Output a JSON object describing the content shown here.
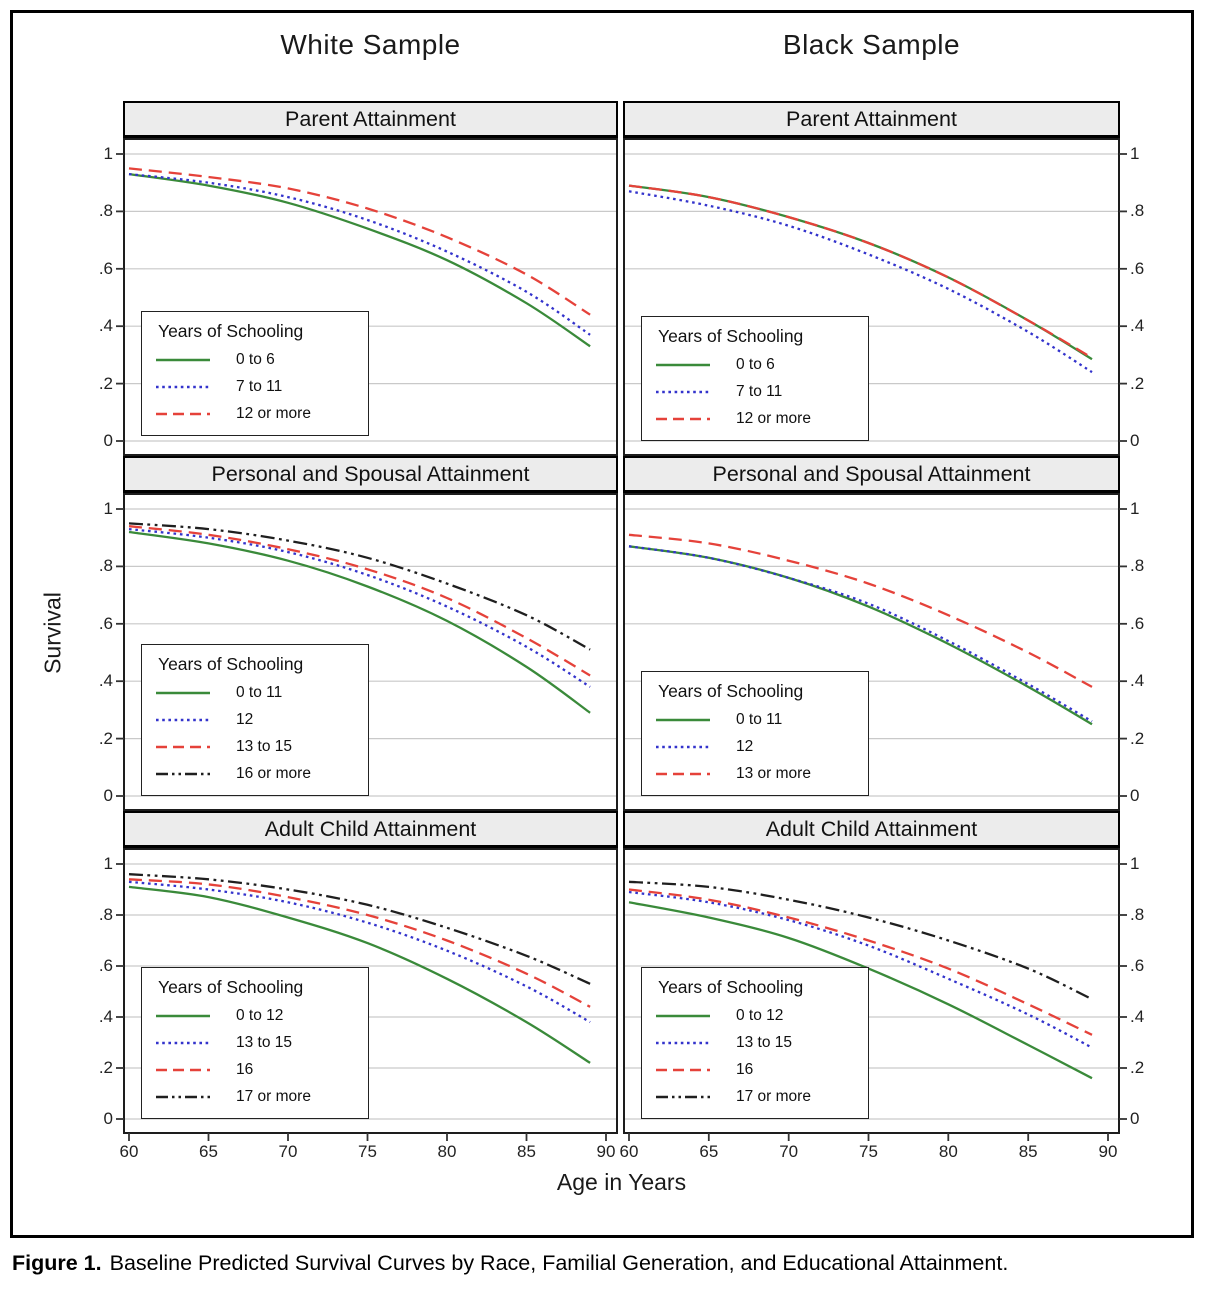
{
  "figure": {
    "column_titles": [
      "White Sample",
      "Black Sample"
    ],
    "x_axis": {
      "label": "Age in Years",
      "ticks": [
        60,
        65,
        70,
        75,
        80,
        85,
        90
      ],
      "range": [
        60,
        90
      ]
    },
    "y_axis": {
      "label": "Survival",
      "ticks": [
        "1",
        ".8",
        ".6",
        ".4",
        ".2",
        "0"
      ],
      "tick_values": [
        1,
        0.8,
        0.6,
        0.4,
        0.2,
        0
      ],
      "range": [
        0,
        1
      ]
    },
    "caption_label": "Figure 1.",
    "caption_text": "Baseline Predicted Survival Curves by Race, Familial Generation, and Educational Attainment."
  },
  "colors": {
    "green": "#3a8a3a",
    "blue": "#3333cc",
    "red": "#e5423a",
    "black": "#1f1f1f",
    "gridline": "#c9c9c9",
    "panel_header_bg": "#ececec"
  },
  "chart_data": [
    {
      "id": "white-parent",
      "type": "line",
      "sample": "White Sample",
      "title": "Parent Attainment",
      "col": 0,
      "row": 0,
      "legend_title": "Years of Schooling",
      "legend_position": "lower left",
      "grid": "horizontal",
      "ylim": [
        0,
        1
      ],
      "xlim": [
        60,
        90
      ],
      "x": [
        60,
        65,
        70,
        75,
        80,
        85,
        89
      ],
      "series": [
        {
          "name": "0 to 6",
          "style": "solid",
          "color": "#3a8a3a",
          "values": [
            0.93,
            0.89,
            0.83,
            0.74,
            0.63,
            0.48,
            0.33
          ]
        },
        {
          "name": "7 to 11",
          "style": "dotted",
          "color": "#3333cc",
          "values": [
            0.93,
            0.9,
            0.85,
            0.77,
            0.66,
            0.52,
            0.37
          ]
        },
        {
          "name": "12 or more",
          "style": "dashed",
          "color": "#e5423a",
          "values": [
            0.95,
            0.92,
            0.88,
            0.81,
            0.71,
            0.58,
            0.44
          ]
        }
      ]
    },
    {
      "id": "black-parent",
      "type": "line",
      "sample": "Black Sample",
      "title": "Parent Attainment",
      "col": 1,
      "row": 0,
      "legend_title": "Years of Schooling",
      "legend_position": "lower left",
      "grid": "horizontal",
      "ylim": [
        0,
        1
      ],
      "xlim": [
        60,
        90
      ],
      "x": [
        60,
        65,
        70,
        75,
        80,
        85,
        89
      ],
      "series": [
        {
          "name": "0 to 6",
          "style": "solid",
          "color": "#3a8a3a",
          "values": [
            0.89,
            0.85,
            0.78,
            0.69,
            0.57,
            0.42,
            0.285
          ]
        },
        {
          "name": "7 to 11",
          "style": "dotted",
          "color": "#3333cc",
          "values": [
            0.87,
            0.82,
            0.75,
            0.65,
            0.53,
            0.38,
            0.24
          ]
        },
        {
          "name": "12 or more",
          "style": "dashed",
          "color": "#e5423a",
          "values": [
            0.89,
            0.85,
            0.78,
            0.69,
            0.57,
            0.42,
            0.29
          ]
        }
      ]
    },
    {
      "id": "white-personal-spousal",
      "type": "line",
      "sample": "White Sample",
      "title": "Personal and Spousal Attainment",
      "col": 0,
      "row": 1,
      "legend_title": "Years of Schooling",
      "legend_position": "lower left",
      "grid": "horizontal",
      "ylim": [
        0,
        1
      ],
      "xlim": [
        60,
        90
      ],
      "x": [
        60,
        65,
        70,
        75,
        80,
        85,
        89
      ],
      "series": [
        {
          "name": "0 to 11",
          "style": "solid",
          "color": "#3a8a3a",
          "values": [
            0.92,
            0.88,
            0.82,
            0.73,
            0.61,
            0.45,
            0.29
          ]
        },
        {
          "name": "12",
          "style": "dotted",
          "color": "#3333cc",
          "values": [
            0.93,
            0.9,
            0.85,
            0.77,
            0.66,
            0.52,
            0.38
          ]
        },
        {
          "name": "13 to 15",
          "style": "dashed",
          "color": "#e5423a",
          "values": [
            0.94,
            0.91,
            0.86,
            0.79,
            0.69,
            0.55,
            0.42
          ]
        },
        {
          "name": "16 or more",
          "style": "dash-dot-dot",
          "color": "#1f1f1f",
          "values": [
            0.95,
            0.93,
            0.89,
            0.83,
            0.74,
            0.63,
            0.51
          ]
        }
      ]
    },
    {
      "id": "black-personal-spousal",
      "type": "line",
      "sample": "Black Sample",
      "title": "Personal and Spousal Attainment",
      "col": 1,
      "row": 1,
      "legend_title": "Years of Schooling",
      "legend_position": "lower left",
      "grid": "horizontal",
      "ylim": [
        0,
        1
      ],
      "xlim": [
        60,
        90
      ],
      "x": [
        60,
        65,
        70,
        75,
        80,
        85,
        89
      ],
      "series": [
        {
          "name": "0 to 11",
          "style": "solid",
          "color": "#3a8a3a",
          "values": [
            0.87,
            0.83,
            0.76,
            0.66,
            0.53,
            0.38,
            0.25
          ]
        },
        {
          "name": "12",
          "style": "dotted",
          "color": "#3333cc",
          "values": [
            0.87,
            0.83,
            0.76,
            0.67,
            0.54,
            0.39,
            0.26
          ]
        },
        {
          "name": "13 or more",
          "style": "dashed",
          "color": "#e5423a",
          "values": [
            0.91,
            0.88,
            0.82,
            0.74,
            0.63,
            0.5,
            0.38
          ]
        }
      ]
    },
    {
      "id": "white-adult-child",
      "type": "line",
      "sample": "White Sample",
      "title": "Adult Child Attainment",
      "col": 0,
      "row": 2,
      "legend_title": "Years of Schooling",
      "legend_position": "lower left",
      "grid": "horizontal",
      "ylim": [
        0,
        1
      ],
      "xlim": [
        60,
        90
      ],
      "x": [
        60,
        65,
        70,
        75,
        80,
        85,
        89
      ],
      "series": [
        {
          "name": "0 to 12",
          "style": "solid",
          "color": "#3a8a3a",
          "values": [
            0.91,
            0.87,
            0.79,
            0.69,
            0.55,
            0.38,
            0.22
          ]
        },
        {
          "name": "13 to 15",
          "style": "dotted",
          "color": "#3333cc",
          "values": [
            0.93,
            0.9,
            0.85,
            0.77,
            0.66,
            0.52,
            0.38
          ]
        },
        {
          "name": "16",
          "style": "dashed",
          "color": "#e5423a",
          "values": [
            0.94,
            0.92,
            0.87,
            0.8,
            0.7,
            0.57,
            0.44
          ]
        },
        {
          "name": "17 or more",
          "style": "dash-dot-dot",
          "color": "#1f1f1f",
          "values": [
            0.96,
            0.94,
            0.9,
            0.84,
            0.75,
            0.64,
            0.53
          ]
        }
      ]
    },
    {
      "id": "black-adult-child",
      "type": "line",
      "sample": "Black Sample",
      "title": "Adult Child Attainment",
      "col": 1,
      "row": 2,
      "legend_title": "Years of Schooling",
      "legend_position": "lower left",
      "grid": "horizontal",
      "ylim": [
        0,
        1
      ],
      "xlim": [
        60,
        90
      ],
      "x": [
        60,
        65,
        70,
        75,
        80,
        85,
        89
      ],
      "series": [
        {
          "name": "0 to 12",
          "style": "solid",
          "color": "#3a8a3a",
          "values": [
            0.85,
            0.79,
            0.71,
            0.59,
            0.45,
            0.29,
            0.16
          ]
        },
        {
          "name": "13 to 15",
          "style": "dotted",
          "color": "#3333cc",
          "values": [
            0.89,
            0.85,
            0.78,
            0.68,
            0.55,
            0.41,
            0.28
          ]
        },
        {
          "name": "16",
          "style": "dashed",
          "color": "#e5423a",
          "values": [
            0.9,
            0.86,
            0.79,
            0.7,
            0.59,
            0.45,
            0.33
          ]
        },
        {
          "name": "17 or more",
          "style": "dash-dot-dot",
          "color": "#1f1f1f",
          "values": [
            0.93,
            0.91,
            0.86,
            0.79,
            0.7,
            0.59,
            0.47
          ]
        }
      ]
    }
  ]
}
